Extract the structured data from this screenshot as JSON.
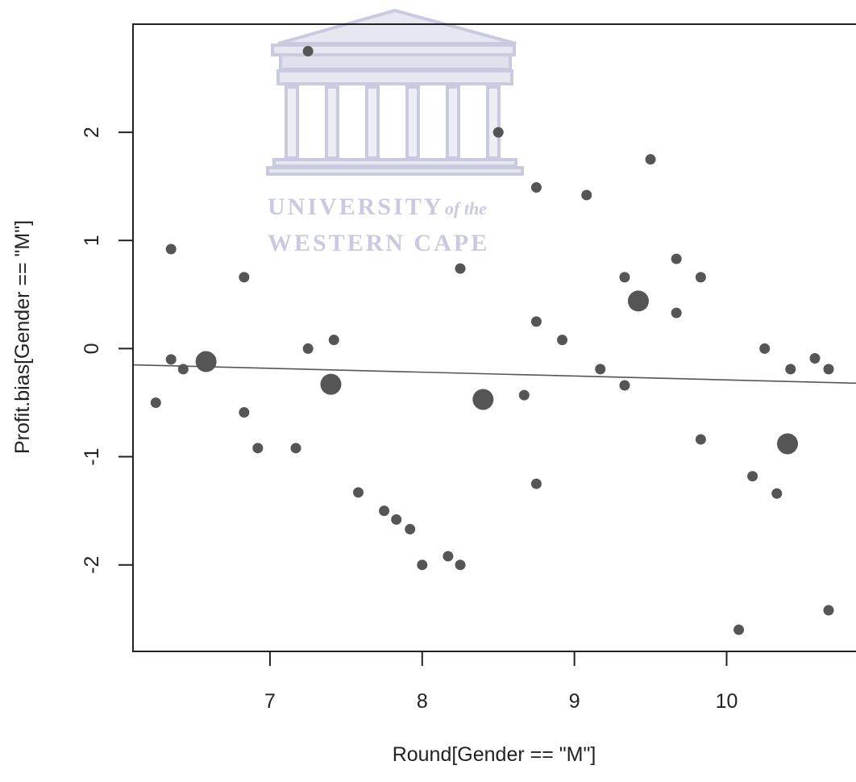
{
  "watermark": {
    "line1": "UNIVERSITY",
    "line1_suffix": "of the",
    "line2": "WESTERN CAPE",
    "color": "#c9cadf"
  },
  "chart_data": {
    "type": "scatter",
    "title": "",
    "xlabel": "Round[Gender == \"M\"]",
    "ylabel": "Profit.bias[Gender == \"M\"]",
    "xlim": [
      6.1,
      10.85
    ],
    "ylim": [
      -2.8,
      3.0
    ],
    "x_ticks": [
      7,
      8,
      9,
      10
    ],
    "y_ticks": [
      -2,
      -1,
      0,
      1,
      2
    ],
    "x_tick_labels": [
      "7",
      "8",
      "9",
      "10"
    ],
    "y_tick_labels": [
      "-2",
      "-1",
      "0",
      "1",
      "2"
    ],
    "grid": false,
    "point_color": "#555555",
    "fit_line": {
      "x": [
        6.1,
        10.85
      ],
      "y": [
        -0.15,
        -0.32
      ],
      "color": "#555555"
    },
    "points": [
      {
        "x": 6.25,
        "y": -0.5,
        "size": 1
      },
      {
        "x": 6.35,
        "y": 0.92,
        "size": 1
      },
      {
        "x": 6.35,
        "y": -0.1,
        "size": 1
      },
      {
        "x": 6.43,
        "y": -0.19,
        "size": 1
      },
      {
        "x": 6.58,
        "y": -0.12,
        "size": 2
      },
      {
        "x": 6.83,
        "y": 0.66,
        "size": 1
      },
      {
        "x": 6.83,
        "y": -0.59,
        "size": 1
      },
      {
        "x": 6.92,
        "y": -0.92,
        "size": 1
      },
      {
        "x": 7.17,
        "y": -0.92,
        "size": 1
      },
      {
        "x": 7.25,
        "y": 2.75,
        "size": 1
      },
      {
        "x": 7.25,
        "y": 0.0,
        "size": 1
      },
      {
        "x": 7.4,
        "y": -0.33,
        "size": 2
      },
      {
        "x": 7.42,
        "y": 0.08,
        "size": 1
      },
      {
        "x": 7.58,
        "y": -1.33,
        "size": 1
      },
      {
        "x": 7.75,
        "y": -1.5,
        "size": 1
      },
      {
        "x": 7.83,
        "y": -1.58,
        "size": 1
      },
      {
        "x": 7.92,
        "y": -1.67,
        "size": 1
      },
      {
        "x": 8.0,
        "y": -2.0,
        "size": 1
      },
      {
        "x": 8.17,
        "y": -1.92,
        "size": 1
      },
      {
        "x": 8.25,
        "y": 0.74,
        "size": 1
      },
      {
        "x": 8.25,
        "y": -2.0,
        "size": 1
      },
      {
        "x": 8.4,
        "y": -0.47,
        "size": 2
      },
      {
        "x": 8.5,
        "y": 2.0,
        "size": 1
      },
      {
        "x": 8.67,
        "y": -0.43,
        "size": 1
      },
      {
        "x": 8.75,
        "y": 1.49,
        "size": 1
      },
      {
        "x": 8.75,
        "y": 0.25,
        "size": 1
      },
      {
        "x": 8.75,
        "y": -1.25,
        "size": 1
      },
      {
        "x": 8.92,
        "y": 0.08,
        "size": 1
      },
      {
        "x": 9.08,
        "y": 1.42,
        "size": 1
      },
      {
        "x": 9.17,
        "y": -0.19,
        "size": 1
      },
      {
        "x": 9.33,
        "y": 0.66,
        "size": 1
      },
      {
        "x": 9.33,
        "y": -0.34,
        "size": 1
      },
      {
        "x": 9.42,
        "y": 0.44,
        "size": 2
      },
      {
        "x": 9.5,
        "y": 1.75,
        "size": 1
      },
      {
        "x": 9.67,
        "y": 0.83,
        "size": 1
      },
      {
        "x": 9.67,
        "y": 0.33,
        "size": 1
      },
      {
        "x": 9.83,
        "y": 0.66,
        "size": 1
      },
      {
        "x": 9.83,
        "y": -0.84,
        "size": 1
      },
      {
        "x": 10.08,
        "y": -2.6,
        "size": 1
      },
      {
        "x": 10.17,
        "y": -1.18,
        "size": 1
      },
      {
        "x": 10.25,
        "y": 0.0,
        "size": 1
      },
      {
        "x": 10.33,
        "y": -1.34,
        "size": 1
      },
      {
        "x": 10.4,
        "y": -0.88,
        "size": 2
      },
      {
        "x": 10.42,
        "y": -0.19,
        "size": 1
      },
      {
        "x": 10.58,
        "y": -0.09,
        "size": 1
      },
      {
        "x": 10.67,
        "y": -0.19,
        "size": 1
      },
      {
        "x": 10.67,
        "y": -2.42,
        "size": 1
      }
    ]
  }
}
